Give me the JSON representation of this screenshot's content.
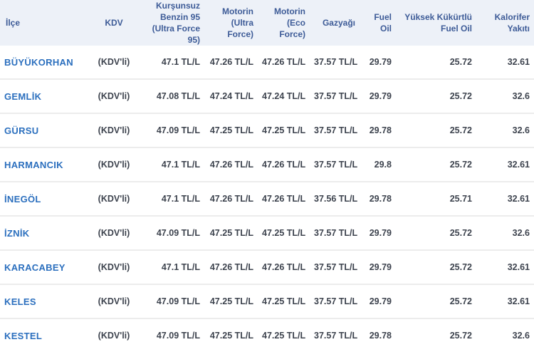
{
  "table": {
    "headers": [
      "İlçe",
      "KDV",
      "Kurşunsuz\nBenzin 95\n(Ultra Force 95)",
      "Motorin\n(Ultra\nForce)",
      "Motorin\n(Eco Force)",
      "Gazyağı",
      "Fuel\nOil",
      "Yüksek Kükürtlü\nFuel Oil",
      "Kalorifer\nYakıtı"
    ],
    "rows": [
      {
        "cells": [
          "BÜYÜKORHAN",
          "(KDV'li)",
          "47.1 TL/L",
          "47.26 TL/L",
          "47.26 TL/L",
          "37.57 TL/L",
          "29.79",
          "25.72",
          "32.61"
        ]
      },
      {
        "cells": [
          "GEMLİK",
          "(KDV'li)",
          "47.08 TL/L",
          "47.24 TL/L",
          "47.24 TL/L",
          "37.57 TL/L",
          "29.79",
          "25.72",
          "32.6"
        ]
      },
      {
        "cells": [
          "GÜRSU",
          "(KDV'li)",
          "47.09 TL/L",
          "47.25 TL/L",
          "47.25 TL/L",
          "37.57 TL/L",
          "29.78",
          "25.72",
          "32.6"
        ]
      },
      {
        "cells": [
          "HARMANCIK",
          "(KDV'li)",
          "47.1 TL/L",
          "47.26 TL/L",
          "47.26 TL/L",
          "37.57 TL/L",
          "29.8",
          "25.72",
          "32.61"
        ]
      },
      {
        "cells": [
          "İNEGÖL",
          "(KDV'li)",
          "47.1 TL/L",
          "47.26 TL/L",
          "47.26 TL/L",
          "37.56 TL/L",
          "29.78",
          "25.71",
          "32.61"
        ]
      },
      {
        "cells": [
          "İZNİK",
          "(KDV'li)",
          "47.09 TL/L",
          "47.25 TL/L",
          "47.25 TL/L",
          "37.57 TL/L",
          "29.79",
          "25.72",
          "32.6"
        ]
      },
      {
        "cells": [
          "KARACABEY",
          "(KDV'li)",
          "47.1 TL/L",
          "47.26 TL/L",
          "47.26 TL/L",
          "37.57 TL/L",
          "29.79",
          "25.72",
          "32.61"
        ]
      },
      {
        "cells": [
          "KELES",
          "(KDV'li)",
          "47.09 TL/L",
          "47.25 TL/L",
          "47.25 TL/L",
          "37.57 TL/L",
          "29.79",
          "25.72",
          "32.61"
        ]
      },
      {
        "cells": [
          "KESTEL",
          "(KDV'li)",
          "47.09 TL/L",
          "47.25 TL/L",
          "47.25 TL/L",
          "37.57 TL/L",
          "29.78",
          "25.72",
          "32.6"
        ]
      }
    ]
  },
  "colors": {
    "header_bg": "#edf1f8",
    "header_text": "#3d5b97",
    "district_text": "#2b6fbe",
    "value_text": "#3d434e",
    "row_separator": "#ececec"
  }
}
